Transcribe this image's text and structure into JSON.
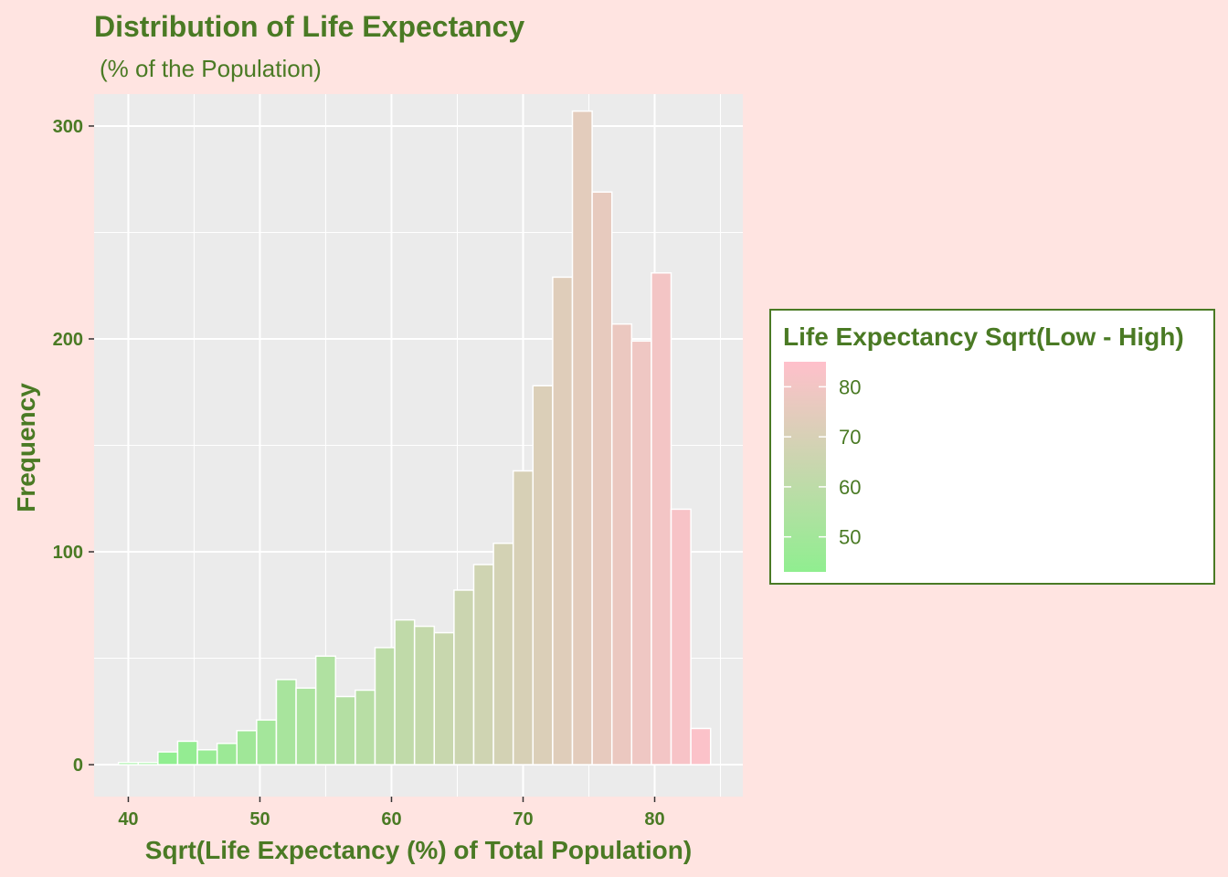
{
  "colors": {
    "page_background": "#ffe4e1",
    "panel_background": "#ebebeb",
    "grid": "#ffffff",
    "text": "#4a7a24",
    "low": "#90ee90",
    "high": "#ffc0cb",
    "bar_outline": "#ffffff"
  },
  "chart_data": {
    "type": "histogram",
    "title": "Distribution of Life Expectancy",
    "subtitle": "(% of the Population)",
    "xlabel": "Sqrt(Life Expectancy (%) of Total Population)",
    "ylabel": "Frequency",
    "xlim": [
      37.4,
      86.7
    ],
    "ylim": [
      -15,
      315
    ],
    "x_ticks": [
      40,
      50,
      60,
      70,
      80
    ],
    "y_ticks": [
      0,
      100,
      200,
      300
    ],
    "bin_width": 1.5,
    "bins": [
      {
        "x": 40.0,
        "count": 1
      },
      {
        "x": 41.5,
        "count": 1
      },
      {
        "x": 43.0,
        "count": 6
      },
      {
        "x": 44.5,
        "count": 11
      },
      {
        "x": 46.0,
        "count": 7
      },
      {
        "x": 47.5,
        "count": 10
      },
      {
        "x": 49.0,
        "count": 16
      },
      {
        "x": 50.5,
        "count": 21
      },
      {
        "x": 52.0,
        "count": 40
      },
      {
        "x": 53.5,
        "count": 36
      },
      {
        "x": 55.0,
        "count": 51
      },
      {
        "x": 56.5,
        "count": 32
      },
      {
        "x": 58.0,
        "count": 35
      },
      {
        "x": 59.5,
        "count": 55
      },
      {
        "x": 61.0,
        "count": 68
      },
      {
        "x": 62.5,
        "count": 65
      },
      {
        "x": 64.0,
        "count": 62
      },
      {
        "x": 65.5,
        "count": 82
      },
      {
        "x": 67.0,
        "count": 94
      },
      {
        "x": 68.5,
        "count": 104
      },
      {
        "x": 70.0,
        "count": 138
      },
      {
        "x": 71.5,
        "count": 178
      },
      {
        "x": 73.0,
        "count": 229
      },
      {
        "x": 74.5,
        "count": 307
      },
      {
        "x": 76.0,
        "count": 269
      },
      {
        "x": 77.5,
        "count": 207
      },
      {
        "x": 79.0,
        "count": 199
      },
      {
        "x": 80.5,
        "count": 231
      },
      {
        "x": 82.0,
        "count": 120
      },
      {
        "x": 83.5,
        "count": 17
      }
    ],
    "legend": {
      "title": "Life Expectancy Sqrt(Low - High)",
      "ticks": [
        50,
        60,
        70,
        80
      ],
      "range": [
        43.0,
        85.0
      ],
      "placement": "right"
    }
  }
}
